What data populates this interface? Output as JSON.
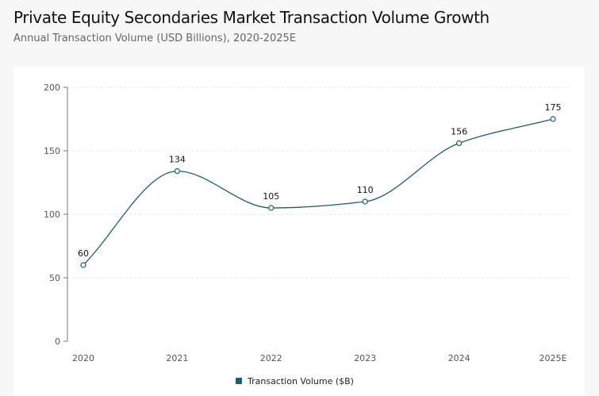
{
  "header": {
    "title": "Private Equity Secondaries Market Transaction Volume Growth",
    "subtitle": "Annual Transaction Volume (USD Billions), 2020-2025E"
  },
  "chart_data": {
    "type": "line",
    "title": "Private Equity Secondaries Market Transaction Volume Growth",
    "subtitle": "Annual Transaction Volume (USD Billions), 2020-2025E",
    "categories": [
      "2020",
      "2021",
      "2022",
      "2023",
      "2024",
      "2025E"
    ],
    "series": [
      {
        "name": "Transaction Volume ($B)",
        "values": [
          60,
          134,
          105,
          110,
          156,
          175
        ],
        "color": "#1f5a6e"
      }
    ],
    "ylim": [
      0,
      200
    ],
    "yticks": [
      0,
      50,
      100,
      150,
      200
    ],
    "grid": true,
    "legend": "bottom-center",
    "xlabel": "",
    "ylabel": ""
  }
}
